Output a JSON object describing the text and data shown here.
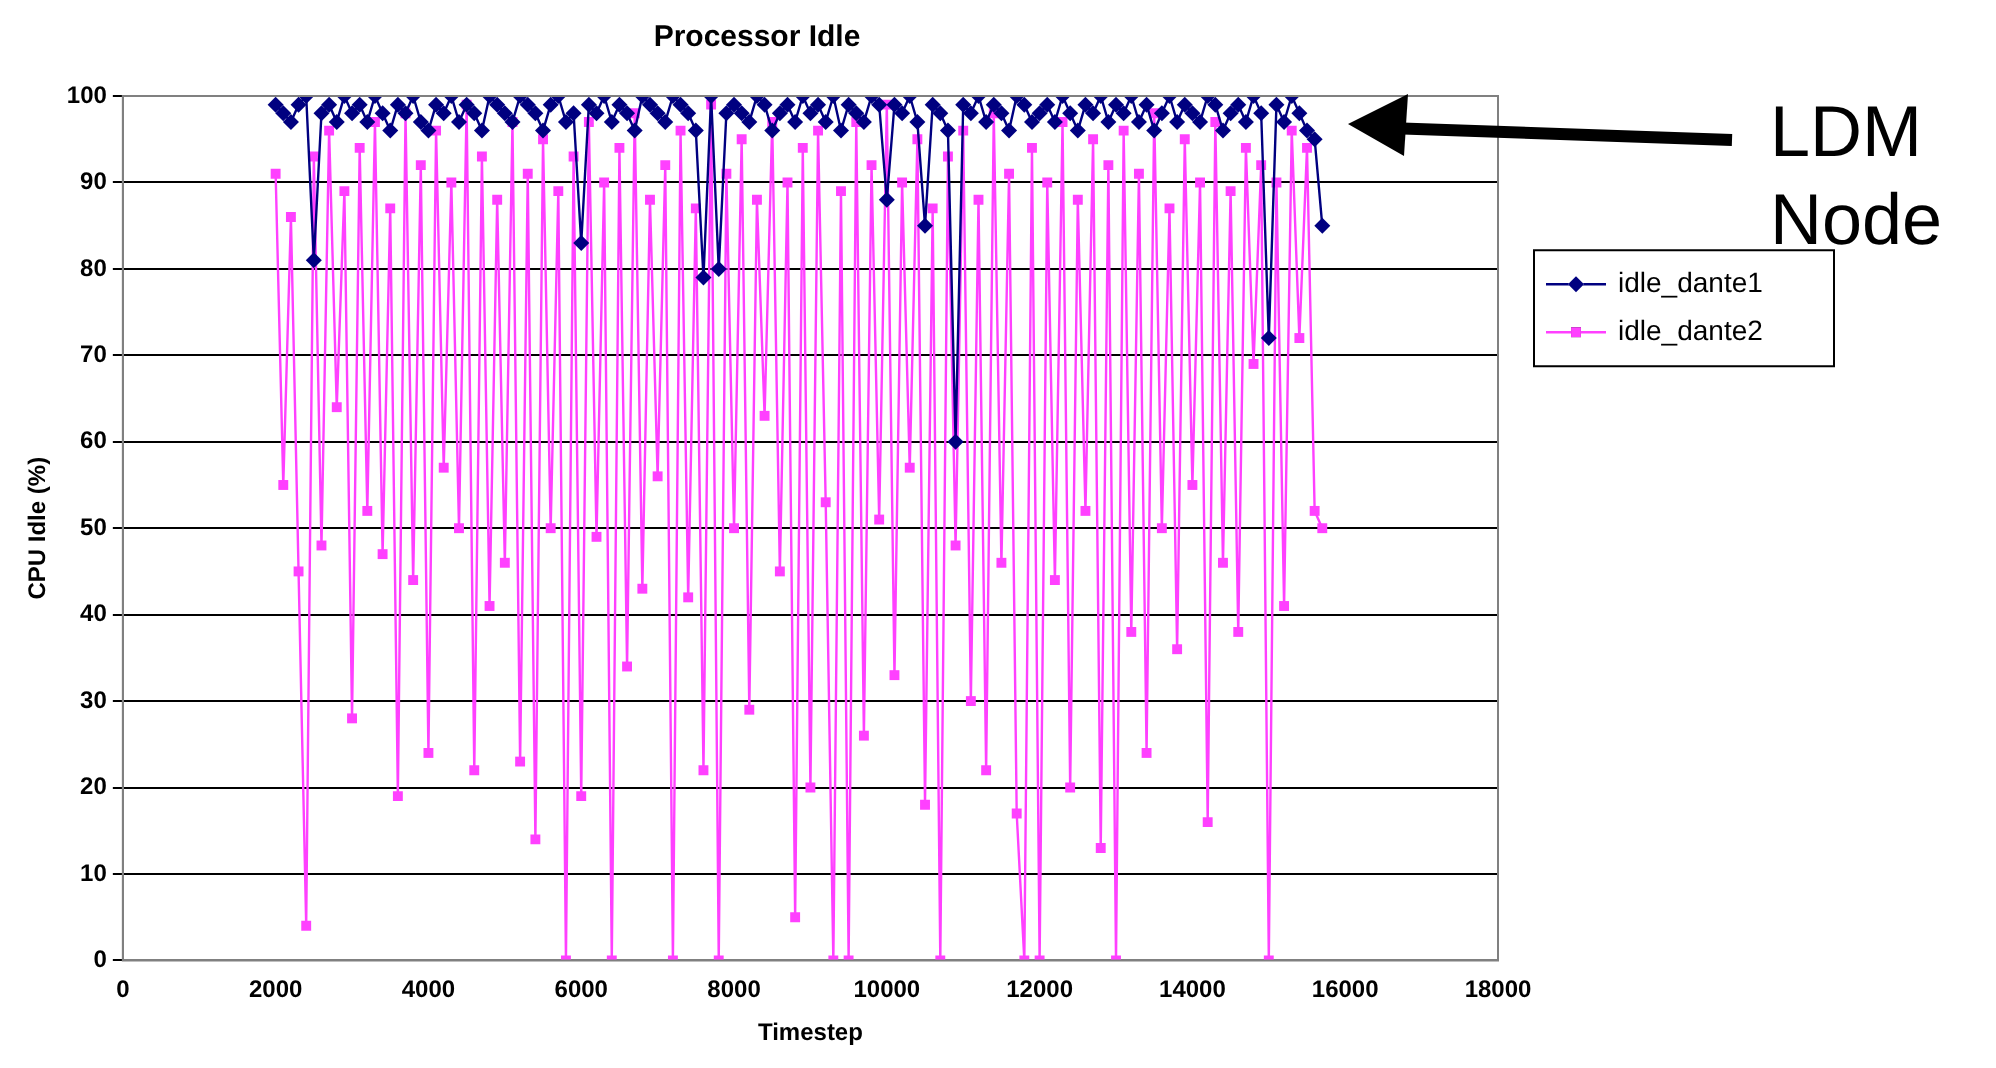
{
  "chart_data": {
    "type": "line",
    "title": "Processor Idle",
    "xlabel": "Timestep",
    "ylabel": "CPU Idle (%)",
    "x": [
      2000,
      2100,
      2200,
      2300,
      2400,
      2500,
      2600,
      2700,
      2800,
      2900,
      3000,
      3100,
      3200,
      3300,
      3400,
      3500,
      3600,
      3700,
      3800,
      3900,
      4000,
      4100,
      4200,
      4300,
      4400,
      4500,
      4600,
      4700,
      4800,
      4900,
      5000,
      5100,
      5200,
      5300,
      5400,
      5500,
      5600,
      5700,
      5800,
      5900,
      6000,
      6100,
      6200,
      6300,
      6400,
      6500,
      6600,
      6700,
      6800,
      6900,
      7000,
      7100,
      7200,
      7300,
      7400,
      7500,
      7600,
      7700,
      7800,
      7900,
      8000,
      8100,
      8200,
      8300,
      8400,
      8500,
      8600,
      8700,
      8800,
      8900,
      9000,
      9100,
      9200,
      9300,
      9400,
      9500,
      9600,
      9700,
      9800,
      9900,
      10000,
      10100,
      10200,
      10300,
      10400,
      10500,
      10600,
      10700,
      10800,
      10900,
      11000,
      11100,
      11200,
      11300,
      11400,
      11500,
      11600,
      11700,
      11800,
      11900,
      12000,
      12100,
      12200,
      12300,
      12400,
      12500,
      12600,
      12700,
      12800,
      12900,
      13000,
      13100,
      13200,
      13300,
      13400,
      13500,
      13600,
      13700,
      13800,
      13900,
      14000,
      14100,
      14200,
      14300,
      14400,
      14500,
      14600,
      14700,
      14800,
      14900,
      15000,
      15100,
      15200,
      15300,
      15400,
      15500,
      15600,
      15700
    ],
    "series": [
      {
        "name": "idle_dante1",
        "color": "#000080",
        "marker": "diamond",
        "values": [
          99,
          98,
          97,
          99,
          100,
          81,
          98,
          99,
          97,
          100,
          98,
          99,
          97,
          100,
          98,
          96,
          99,
          98,
          100,
          97,
          96,
          99,
          98,
          100,
          97,
          99,
          98,
          96,
          100,
          99,
          98,
          97,
          100,
          99,
          98,
          96,
          99,
          100,
          97,
          98,
          83,
          99,
          98,
          100,
          97,
          99,
          98,
          96,
          100,
          99,
          98,
          97,
          100,
          99,
          98,
          96,
          79,
          100,
          80,
          98,
          99,
          98,
          97,
          100,
          99,
          96,
          98,
          99,
          97,
          100,
          98,
          99,
          97,
          100,
          96,
          99,
          98,
          97,
          100,
          99,
          88,
          99,
          98,
          100,
          97,
          85,
          99,
          98,
          96,
          60,
          99,
          98,
          100,
          97,
          99,
          98,
          96,
          100,
          99,
          97,
          98,
          99,
          97,
          100,
          98,
          96,
          99,
          98,
          100,
          97,
          99,
          98,
          100,
          97,
          99,
          96,
          98,
          100,
          97,
          99,
          98,
          97,
          100,
          99,
          96,
          98,
          99,
          97,
          100,
          98,
          72,
          99,
          97,
          100,
          98,
          96,
          95,
          85
        ]
      },
      {
        "name": "idle_dante2",
        "color": "#ff40ff",
        "marker": "square",
        "values": [
          91,
          55,
          86,
          45,
          4,
          93,
          48,
          96,
          64,
          89,
          28,
          94,
          52,
          97,
          47,
          87,
          19,
          98,
          44,
          92,
          24,
          96,
          57,
          90,
          50,
          99,
          22,
          93,
          41,
          88,
          46,
          97,
          23,
          91,
          14,
          95,
          50,
          89,
          0,
          93,
          19,
          97,
          49,
          90,
          0,
          94,
          34,
          98,
          43,
          88,
          56,
          92,
          0,
          96,
          42,
          87,
          22,
          99,
          0,
          91,
          50,
          95,
          29,
          88,
          63,
          97,
          45,
          90,
          5,
          94,
          20,
          96,
          53,
          0,
          89,
          0,
          97,
          26,
          92,
          51,
          99,
          33,
          90,
          57,
          95,
          18,
          87,
          0,
          93,
          48,
          96,
          30,
          88,
          22,
          98,
          46,
          91,
          17,
          0,
          94,
          0,
          90,
          44,
          97,
          20,
          88,
          52,
          95,
          13,
          92,
          0,
          96,
          38,
          91,
          24,
          98,
          50,
          87,
          36,
          95,
          55,
          90,
          16,
          97,
          46,
          89,
          38,
          94,
          69,
          92,
          0,
          90,
          41,
          96,
          72,
          94,
          52,
          50
        ]
      }
    ],
    "xlim": [
      0,
      18000
    ],
    "xticks": [
      0,
      2000,
      4000,
      6000,
      8000,
      10000,
      12000,
      14000,
      16000,
      18000
    ],
    "ylim": [
      0,
      100
    ],
    "yticks": [
      0,
      10,
      20,
      30,
      40,
      50,
      60,
      70,
      80,
      90,
      100
    ],
    "grid": "y",
    "legend": "right",
    "line_style": "solid",
    "annotations": [
      "LDM Node"
    ]
  }
}
